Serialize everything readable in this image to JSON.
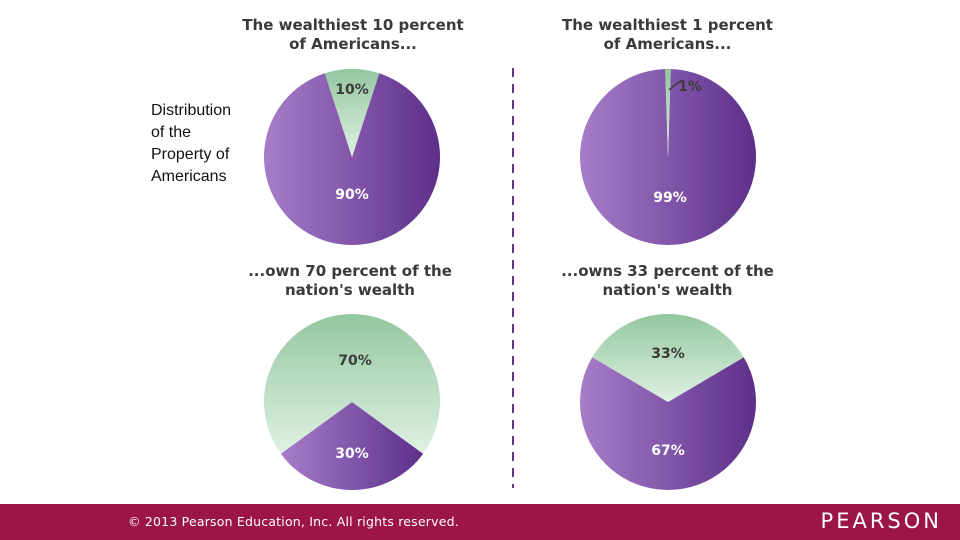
{
  "page": {
    "side_title": "Distribution\nof the\nProperty of\nAmericans",
    "footer_text": "© 2013  Pearson Education, Inc. All rights reserved.",
    "logo": "PEARSON",
    "footer_color": "#9b1549"
  },
  "chart_data": [
    {
      "type": "pie",
      "title": "The wealthiest 10 percent of Americans...",
      "slices": [
        {
          "label": "10%",
          "value": 10,
          "color": "green"
        },
        {
          "label": "90%",
          "value": 90,
          "color": "purple"
        }
      ]
    },
    {
      "type": "pie",
      "title": "The wealthiest 1 percent of Americans...",
      "slices": [
        {
          "label": "1%",
          "value": 1,
          "color": "green"
        },
        {
          "label": "99%",
          "value": 99,
          "color": "purple"
        }
      ]
    },
    {
      "type": "pie",
      "title": "...own 70 percent of the nation's wealth",
      "slices": [
        {
          "label": "70%",
          "value": 70,
          "color": "green"
        },
        {
          "label": "30%",
          "value": 30,
          "color": "purple"
        }
      ]
    },
    {
      "type": "pie",
      "title": "...owns 33 percent of the nation's wealth",
      "slices": [
        {
          "label": "33%",
          "value": 33,
          "color": "green"
        },
        {
          "label": "67%",
          "value": 67,
          "color": "purple"
        }
      ]
    }
  ],
  "headings": {
    "top_left": "The wealthiest 10 percent of Americans...",
    "top_right": "The wealthiest 1 percent of Americans...",
    "bottom_left": "...own 70 percent of the nation's wealth",
    "bottom_right": "...owns 33 percent of the nation's wealth"
  },
  "colors": {
    "purple_light": "#a77dc9",
    "purple_dark": "#5d2f8a",
    "green_top": "#93c79f",
    "green_bottom": "#dff1e3",
    "label_dark": "#3b3b3b",
    "label_light": "#ffffff",
    "divider": "#5f3a8c"
  }
}
